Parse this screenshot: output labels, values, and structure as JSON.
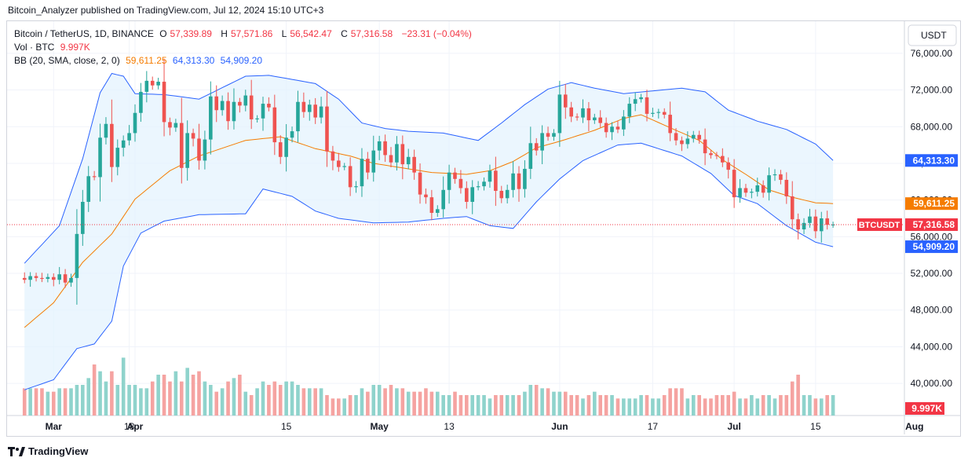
{
  "publisher_line": "Bitcoin_Analyzer published on TradingView.com, Jul 12, 2024 15:10 UTC+3",
  "legend": {
    "symbol": "Bitcoin / TetherUS, 1D, BINANCE",
    "o_label": "O",
    "o": "57,339.89",
    "h_label": "H",
    "h": "57,571.86",
    "l_label": "L",
    "l": "56,542.47",
    "c_label": "C",
    "c": "57,316.58",
    "change": "−23.31 (−0.04%)",
    "vol_label": "Vol · BTC",
    "vol_value": "9.997K",
    "bb_label": "BB (20, SMA, close, 2, 0)",
    "bb_basis": "59,611.25",
    "bb_upper": "64,313.30",
    "bb_lower": "54,909.20"
  },
  "footer": {
    "brand": "TradingView"
  },
  "colors": {
    "up": "#26a69a",
    "down": "#ef5350",
    "vol_up": "#8fd3cc",
    "vol_down": "#f5a3a1",
    "basis": "#f57c00",
    "band": "#2962ff",
    "band_fill": "#e3f2fd",
    "text": "#131722",
    "grid": "#f0f3fa"
  },
  "chart_data": {
    "type": "candlestick",
    "title": "Bitcoin / TetherUS, 1D, BINANCE",
    "currency_label": "USDT",
    "y_ticks": [
      40000,
      44000,
      48000,
      52000,
      56000,
      60000,
      64000,
      68000,
      72000,
      76000
    ],
    "y_tick_labels": [
      "40,000.00",
      "44,000.00",
      "48,000.00",
      "52,000.00",
      "56,000.00",
      "60,000.00",
      "64,000.00",
      "68,000.00",
      "72,000.00",
      "76,000.00"
    ],
    "y_range": [
      36500,
      79500
    ],
    "x_labels": [
      {
        "label": "Mar",
        "day": 5
      },
      {
        "label": "18",
        "day": 18
      },
      {
        "label": "Apr",
        "day": 19
      },
      {
        "label": "15",
        "day": 45
      },
      {
        "label": "May",
        "day": 61
      },
      {
        "label": "13",
        "day": 73
      },
      {
        "label": "Jun",
        "day": 92
      },
      {
        "label": "17",
        "day": 108
      },
      {
        "label": "Jul",
        "day": 122
      },
      {
        "label": "15",
        "day": 136
      },
      {
        "label": "Aug",
        "day": 153
      }
    ],
    "x_range_days": [
      -3,
      151
    ],
    "first_day_note": "Feb 27",
    "closes": [
      51300,
      51700,
      51500,
      51400,
      51600,
      51300,
      51900,
      51000,
      51500,
      56300,
      59800,
      62600,
      62500,
      66800,
      68300,
      63600,
      65700,
      66500,
      67300,
      69500,
      71800,
      73000,
      72500,
      72900,
      68500,
      67900,
      68400,
      63500,
      67300,
      66700,
      64300,
      66600,
      71300,
      69800,
      70800,
      68600,
      70700,
      70300,
      71400,
      68800,
      68900,
      70500,
      70100,
      66300,
      64700,
      66800,
      67500,
      70700,
      69600,
      70400,
      69000,
      70200,
      65300,
      64300,
      63600,
      63700,
      61400,
      61500,
      64500,
      63000,
      65400,
      66400,
      64900,
      64100,
      66100,
      63900,
      64700,
      63000,
      60600,
      60300,
      58600,
      59000,
      61100,
      63000,
      62300,
      61300,
      59800,
      61400,
      61500,
      62000,
      63200,
      61000,
      60200,
      61100,
      62900,
      61200,
      63400,
      66200,
      65400,
      67300,
      66900,
      67300,
      71500,
      70100,
      69100,
      69000,
      70000,
      68700,
      69000,
      68400,
      67400,
      68000,
      67700,
      69100,
      70500,
      71000,
      71200,
      69400,
      69500,
      69600,
      69300,
      67300,
      66500,
      66100,
      66700,
      67100,
      66600,
      65100,
      64900,
      64800,
      64100,
      63300,
      60300,
      61300,
      60800,
      60900,
      61600,
      60800,
      62700,
      62800,
      62200,
      60400,
      57900,
      56800,
      57500,
      58200,
      56600,
      58000,
      57300,
      57316.58
    ],
    "volumes": [
      8,
      8,
      8,
      8,
      7,
      7,
      8,
      8,
      8,
      9,
      9,
      11,
      15,
      13,
      10,
      13,
      9,
      17,
      9,
      9,
      8,
      8,
      10,
      12,
      12,
      10,
      13,
      10,
      14,
      12,
      13,
      10,
      9,
      7,
      8,
      10,
      11,
      12,
      7,
      6,
      8,
      10,
      9,
      10,
      9,
      10,
      10,
      9,
      8,
      8,
      8,
      8,
      6,
      5,
      5,
      5,
      6,
      6,
      8,
      7,
      9,
      9,
      8,
      9,
      8,
      8,
      7,
      7,
      7,
      8,
      7,
      7,
      6,
      6,
      7,
      6,
      6,
      6,
      6,
      6,
      5,
      6,
      6,
      6,
      6,
      6,
      7,
      9,
      9,
      8,
      8,
      7,
      7,
      7,
      6,
      6,
      5,
      6,
      7,
      6,
      6,
      6,
      5,
      5,
      5,
      5,
      6,
      6,
      5,
      5,
      6,
      8,
      8,
      8,
      5,
      6,
      6,
      5,
      5,
      6,
      6,
      6,
      7,
      5,
      5,
      6,
      5,
      6,
      6,
      5,
      6,
      6,
      10,
      12,
      6,
      6,
      5,
      5,
      6,
      6
    ],
    "volume_max": 30,
    "basis_anchor": [
      [
        0,
        46100
      ],
      [
        5,
        48800
      ],
      [
        10,
        53200
      ],
      [
        15,
        56300
      ],
      [
        19,
        60100
      ],
      [
        25,
        63200
      ],
      [
        30,
        64800
      ],
      [
        38,
        66500
      ],
      [
        44,
        66900
      ],
      [
        50,
        65600
      ],
      [
        56,
        64800
      ],
      [
        60,
        64000
      ],
      [
        66,
        63400
      ],
      [
        70,
        63000
      ],
      [
        76,
        62800
      ],
      [
        80,
        63200
      ],
      [
        84,
        64200
      ],
      [
        88,
        65700
      ],
      [
        92,
        66400
      ],
      [
        98,
        67600
      ],
      [
        103,
        68900
      ],
      [
        106,
        69300
      ],
      [
        112,
        67600
      ],
      [
        116,
        66500
      ],
      [
        120,
        64400
      ],
      [
        124,
        62800
      ],
      [
        128,
        61100
      ],
      [
        132,
        60300
      ],
      [
        136,
        59700
      ],
      [
        139,
        59611.25
      ]
    ],
    "upper_anchor": [
      [
        0,
        53100
      ],
      [
        6,
        57200
      ],
      [
        10,
        64500
      ],
      [
        13,
        71700
      ],
      [
        15,
        73800
      ],
      [
        17,
        73500
      ],
      [
        19,
        71600
      ],
      [
        24,
        71500
      ],
      [
        30,
        71000
      ],
      [
        38,
        73500
      ],
      [
        42,
        73600
      ],
      [
        50,
        72700
      ],
      [
        54,
        71000
      ],
      [
        58,
        68400
      ],
      [
        62,
        67800
      ],
      [
        66,
        67500
      ],
      [
        72,
        67300
      ],
      [
        78,
        66500
      ],
      [
        82,
        68400
      ],
      [
        86,
        70400
      ],
      [
        90,
        72100
      ],
      [
        94,
        72800
      ],
      [
        98,
        72200
      ],
      [
        103,
        71600
      ],
      [
        108,
        71900
      ],
      [
        113,
        72200
      ],
      [
        117,
        71800
      ],
      [
        121,
        69800
      ],
      [
        126,
        68600
      ],
      [
        131,
        67700
      ],
      [
        136,
        66100
      ],
      [
        139,
        64313.3
      ]
    ],
    "lower_anchor": [
      [
        0,
        39300
      ],
      [
        5,
        40400
      ],
      [
        9,
        43800
      ],
      [
        12,
        44300
      ],
      [
        15,
        46800
      ],
      [
        17,
        52800
      ],
      [
        20,
        56400
      ],
      [
        24,
        57700
      ],
      [
        30,
        58400
      ],
      [
        38,
        58500
      ],
      [
        41,
        61200
      ],
      [
        46,
        60400
      ],
      [
        50,
        58800
      ],
      [
        54,
        58000
      ],
      [
        60,
        57500
      ],
      [
        66,
        57600
      ],
      [
        72,
        58000
      ],
      [
        76,
        58200
      ],
      [
        80,
        57200
      ],
      [
        84,
        56900
      ],
      [
        88,
        59800
      ],
      [
        92,
        62300
      ],
      [
        96,
        64300
      ],
      [
        102,
        66000
      ],
      [
        106,
        66200
      ],
      [
        113,
        64800
      ],
      [
        118,
        62900
      ],
      [
        122,
        60500
      ],
      [
        126,
        59600
      ],
      [
        131,
        57200
      ],
      [
        136,
        55400
      ],
      [
        139,
        54909.2
      ]
    ],
    "price_labels": [
      {
        "name": "bb-upper-price-label",
        "value": 64313.3,
        "text": "64,313.30",
        "color": "#2962ff"
      },
      {
        "name": "bb-basis-price-label",
        "value": 59611.25,
        "text": "59,611.25",
        "color": "#f57c00"
      },
      {
        "name": "last-price-label",
        "value": 57316.58,
        "text": "57,316.58",
        "color": "#f23645",
        "tag": "BTCUSDT"
      },
      {
        "name": "bb-lower-price-label",
        "value": 54909.2,
        "text": "54,909.20",
        "color": "#2962ff"
      }
    ],
    "volume_label": "9.997K"
  }
}
